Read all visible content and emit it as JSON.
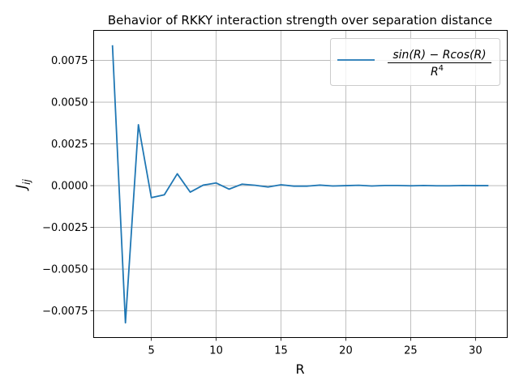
{
  "chart_data": {
    "type": "line",
    "title": "Behavior of RKKY interaction strength over separation distance",
    "xlabel": "R",
    "ylabel_main": "J",
    "ylabel_sub": "ij",
    "xlim": [
      0.55,
      32.45
    ],
    "ylim": [
      -0.0091,
      0.0093
    ],
    "xticks": [
      5,
      10,
      15,
      20,
      25,
      30
    ],
    "yticks": [
      -0.0075,
      -0.005,
      -0.0025,
      0.0,
      0.0025,
      0.005,
      0.0075
    ],
    "ytick_labels": [
      "−0.0075",
      "−0.0050",
      "−0.0025",
      "0.0000",
      "0.0025",
      "0.0050",
      "0.0075"
    ],
    "grid": true,
    "legend_position": "top-right",
    "series": [
      {
        "name_numerator": "sin(R) − Rcos(R)",
        "name_denominator_base": "R",
        "name_denominator_exp": "4",
        "color": "#1f77b4",
        "x": [
          2,
          3,
          4,
          5,
          6,
          7,
          8,
          9,
          10,
          11,
          12,
          13,
          14,
          15,
          16,
          17,
          18,
          19,
          20,
          21,
          22,
          23,
          24,
          25,
          26,
          27,
          28,
          29,
          30,
          31
        ],
        "y": [
          0.00841,
          -0.00822,
          0.00365,
          -0.00072,
          -0.00055,
          0.00071,
          -0.00039,
          3e-05,
          0.00016,
          -0.00021,
          9e-05,
          2e-05,
          -8e-05,
          5e-05,
          -3e-05,
          -3e-05,
          3e-05,
          -2e-05,
          0.0,
          2e-05,
          -2e-05,
          1e-05,
          1e-05,
          -1e-05,
          1e-05,
          -1e-05,
          -1e-05,
          1e-05,
          0.0,
          0.0
        ]
      }
    ]
  }
}
